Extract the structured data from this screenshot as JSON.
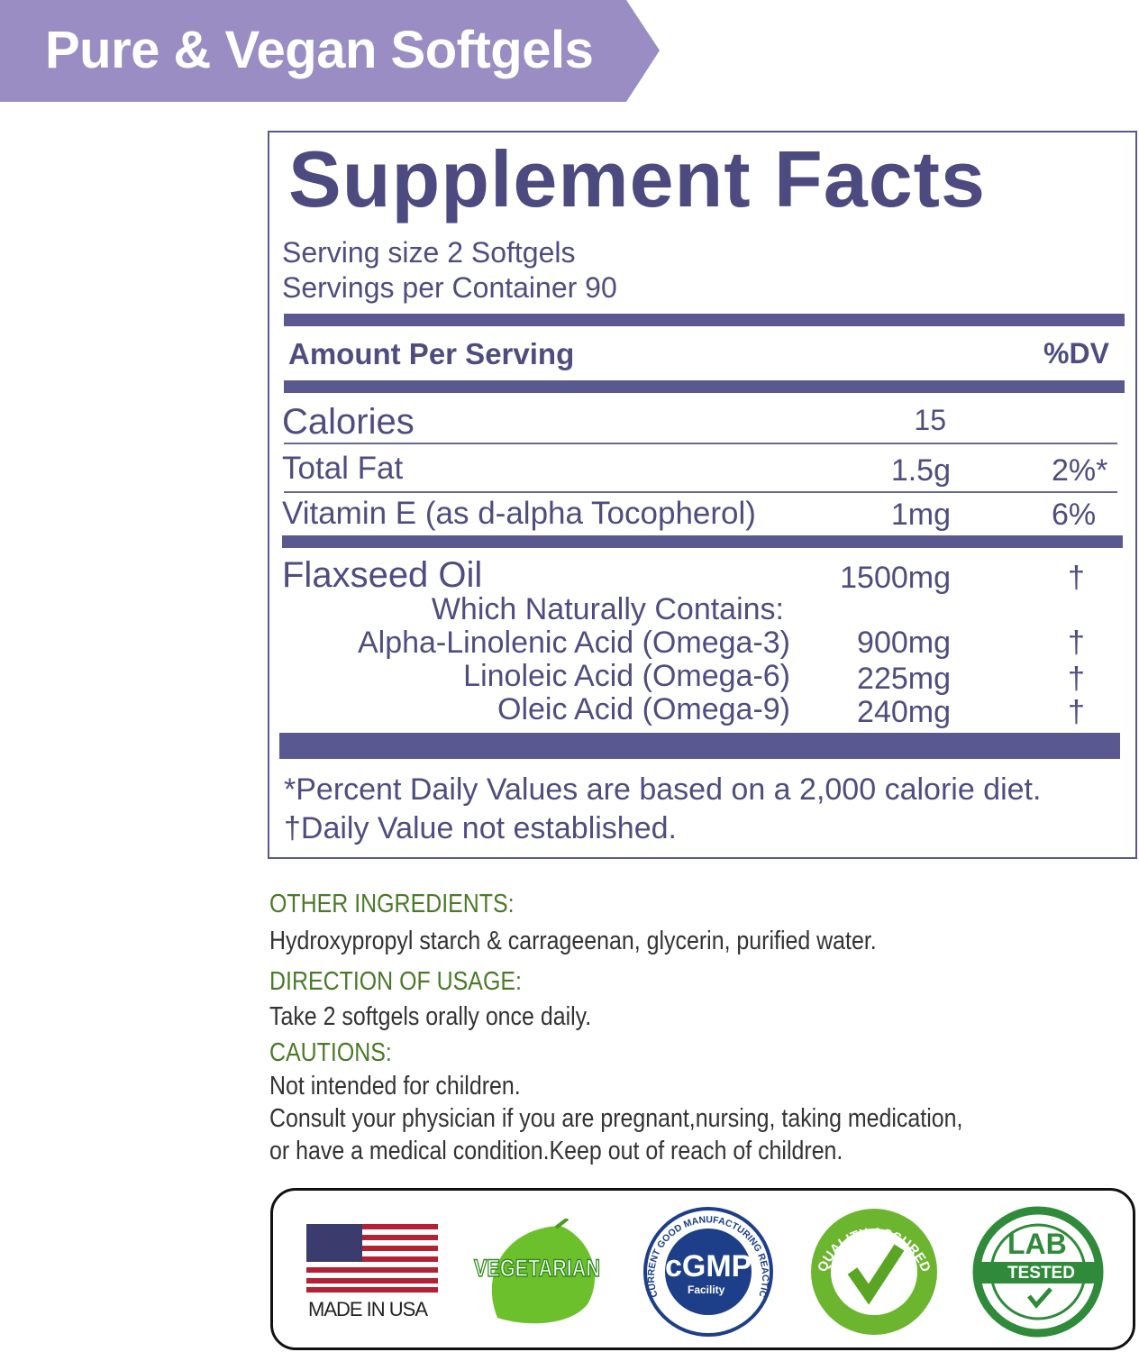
{
  "banner": {
    "title": "Pure & Vegan Softgels",
    "color": "#9a8dc4"
  },
  "facts": {
    "title": "Supplement Facts",
    "serving_size": "Serving size 2 Softgels",
    "servings_per_container": "Servings per Container 90",
    "amount_header": "Amount Per Serving",
    "dv_header": "%DV",
    "rows": [
      {
        "name": "Calories",
        "amount": "15",
        "dv": ""
      },
      {
        "name": "Total Fat",
        "amount": "1.5g",
        "dv": "2%*"
      },
      {
        "name": "Vitamin E (as d-alpha Tocopherol)",
        "amount": "1mg",
        "dv": "6%"
      }
    ],
    "blend": {
      "name": "Flaxseed Oil",
      "amount": "1500mg",
      "dv": "†",
      "contains_label": "Which Naturally Contains:",
      "items": [
        {
          "name": "Alpha-Linolenic Acid (Omega-3)",
          "amount": "900mg",
          "dv": "†"
        },
        {
          "name": "Linoleic Acid (Omega-6)",
          "amount": "225mg",
          "dv": "†"
        },
        {
          "name": "Oleic Acid (Omega-9)",
          "amount": "240mg",
          "dv": "†"
        }
      ]
    },
    "footnote1": "*Percent Daily Values are based on a 2,000 calorie diet.",
    "footnote2": "†Daily Value not established.",
    "color": "#4f4d80"
  },
  "info": {
    "other_heading": "OTHER INGREDIENTS:",
    "other_text": "Hydroxypropyl starch & carrageenan, glycerin, purified water.",
    "direction_heading": "DIRECTION OF USAGE:",
    "direction_text": "Take 2 softgels orally once daily.",
    "cautions_heading": "CAUTIONS:",
    "cautions_lines": [
      "Not intended for children.",
      "Consult your physician if you are pregnant,nursing, taking medication,",
      "or have a medical condition.Keep out of reach of children."
    ],
    "heading_color": "#4a7a28"
  },
  "badges": {
    "usa": "MADE IN USA",
    "vegetarian": "VEGETARIAN",
    "cgmp": {
      "main": "cGMP",
      "sub": "Facility",
      "ring": "CURRENT GOOD MANUFACTURING REACTICE"
    },
    "quality": "QUALITY ASSURED",
    "lab": {
      "top": "LAB",
      "bottom": "TESTED"
    }
  }
}
